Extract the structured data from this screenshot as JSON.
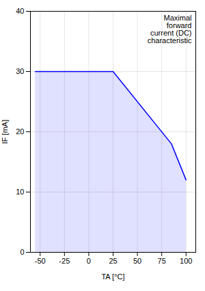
{
  "chart_data": {
    "type": "area",
    "x": [
      -55,
      -40,
      25,
      85,
      100
    ],
    "values": [
      30,
      30,
      30,
      18,
      12
    ],
    "color": "blue",
    "xlabel": "TA [°C]",
    "ylabel": "IF [mA]",
    "xlim": [
      -60,
      110
    ],
    "xticks": [
      -50,
      -25,
      0,
      25,
      50,
      75,
      100
    ],
    "ylim": [
      0,
      40
    ],
    "yticks": [
      0,
      10,
      20,
      30,
      40
    ],
    "grid": true,
    "annotations": [
      "Maximal\nforward\ncurrent (DC)\ncharacteristic"
    ]
  }
}
